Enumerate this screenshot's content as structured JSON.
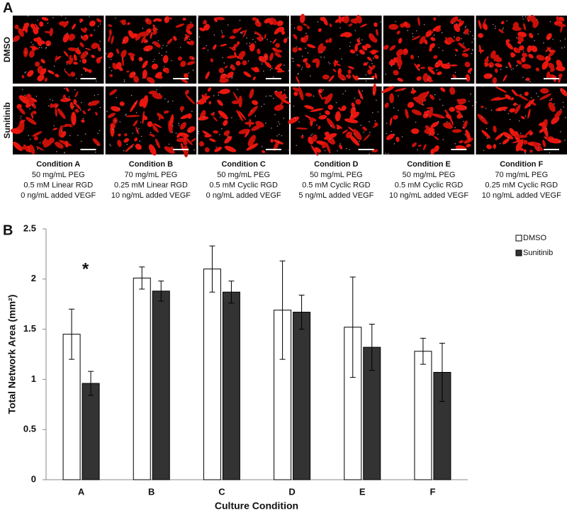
{
  "panels": {
    "a": "A",
    "b": "B"
  },
  "images": {
    "rows": [
      "DMSO",
      "Sunitinib"
    ],
    "conditions": [
      {
        "name": "Condition A",
        "lines": [
          "50 mg/mL PEG",
          "0.5 mM Linear RGD",
          "0 ng/mL added VEGF"
        ]
      },
      {
        "name": "Condition B",
        "lines": [
          "70 mg/mL PEG",
          "0.25 mM Linear RGD",
          "10 ng/mL added VEGF"
        ]
      },
      {
        "name": "Condition C",
        "lines": [
          "50 mg/mL PEG",
          "0.5 mM Cyclic RGD",
          "0 ng/mL added VEGF"
        ]
      },
      {
        "name": "Condition D",
        "lines": [
          "50 mg/mL PEG",
          "0.5 mM Cyclic RGD",
          "5 ng/mL added VEGF"
        ]
      },
      {
        "name": "Condition E",
        "lines": [
          "50 mg/mL PEG",
          "0.5 mM Cyclic RGD",
          "10 ng/mL added VEGF"
        ]
      },
      {
        "name": "Condition F",
        "lines": [
          "70 mg/mL PEG",
          "0.25 mM Cyclic RGD",
          "10 ng/mL added VEGF"
        ]
      }
    ]
  },
  "chart_data": {
    "type": "bar",
    "x_label": "Culture Condition",
    "y_label": "Total Network Area (mm²)",
    "annotation": "*",
    "categories": [
      "A",
      "B",
      "C",
      "D",
      "E",
      "F"
    ],
    "series": [
      {
        "name": "DMSO",
        "color": "#ffffff",
        "values": [
          1.45,
          2.01,
          2.1,
          1.69,
          1.52,
          1.28
        ],
        "errors": [
          0.25,
          0.11,
          0.23,
          0.49,
          0.5,
          0.13
        ]
      },
      {
        "name": "Sunitinib",
        "color": "#333333",
        "values": [
          0.96,
          1.88,
          1.87,
          1.67,
          1.32,
          1.07
        ],
        "errors": [
          0.12,
          0.1,
          0.11,
          0.17,
          0.23,
          0.29
        ]
      }
    ],
    "ylim": [
      0,
      2.5
    ],
    "yticks": [
      0,
      0.5,
      1,
      1.5,
      2,
      2.5
    ],
    "grid": false,
    "legend": "right"
  }
}
